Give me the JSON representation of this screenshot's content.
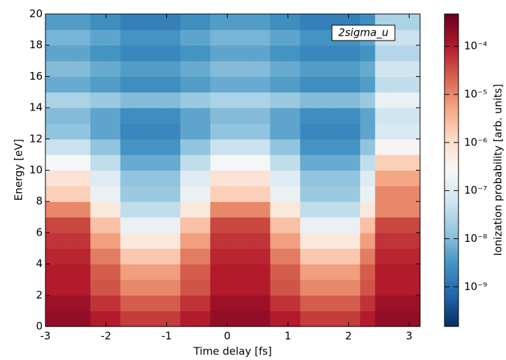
{
  "chart_data": {
    "type": "heatmap",
    "xlabel": "Time delay [fs]",
    "ylabel": "Energy [eV]",
    "annotation": "2sigma_u",
    "colorbar_label": "Ionization probability [arb. units]",
    "colormap": "RdBu_r",
    "color_scale": "log",
    "xlim": [
      -3,
      3.18
    ],
    "ylim": [
      0,
      20
    ],
    "xticks": [
      -3,
      -2,
      -1,
      0,
      1,
      2,
      3
    ],
    "yticks": [
      0,
      2,
      4,
      6,
      8,
      10,
      12,
      14,
      16,
      18,
      20
    ],
    "clim": [
      1.5e-10,
      0.00047
    ],
    "cticks": [
      {
        "value": 1e-09,
        "label": "10⁻⁹"
      },
      {
        "value": 1e-08,
        "label": "10⁻⁸"
      },
      {
        "value": 1e-07,
        "label": "10⁻⁷"
      },
      {
        "value": 1e-06,
        "label": "10⁻⁶"
      },
      {
        "value": 1e-05,
        "label": "10⁻⁵"
      },
      {
        "value": 0.0001,
        "label": "10⁻⁴"
      }
    ],
    "values": [
      [
        0.0002,
        0.0002,
        0.0002,
        0.0001,
        0.0001,
        5e-05,
        5e-05,
        5e-05,
        5e-05,
        0.0001,
        0.0001,
        0.0002,
        0.0002,
        0.0002,
        0.0002,
        0.0001,
        0.0001,
        5e-05,
        5e-05,
        5e-05,
        5e-05,
        0.0001,
        0.0002,
        0.0002,
        0.0002
      ],
      [
        0.00016,
        0.00016,
        0.00016,
        6e-05,
        6e-05,
        2.5e-05,
        2.5e-05,
        2.5e-05,
        2.5e-05,
        6e-05,
        6e-05,
        0.00016,
        0.00016,
        0.00016,
        0.00016,
        6e-05,
        6e-05,
        2.5e-05,
        2.5e-05,
        2.5e-05,
        2.5e-05,
        6e-05,
        0.00016,
        0.00016,
        0.00016
      ],
      [
        0.0001,
        0.0001,
        0.0001,
        3e-05,
        3e-05,
        1e-05,
        1e-05,
        1e-05,
        1e-05,
        3e-05,
        3e-05,
        0.0001,
        0.0001,
        0.0001,
        0.0001,
        3e-05,
        3e-05,
        1e-05,
        1e-05,
        1e-05,
        1e-05,
        3e-05,
        0.0001,
        0.0001,
        0.0001
      ],
      [
        0.0001,
        0.0001,
        0.0001,
        2.5e-05,
        2.5e-05,
        6e-06,
        6e-06,
        6e-06,
        6e-06,
        2.5e-05,
        2.5e-05,
        0.0001,
        0.0001,
        0.0001,
        0.0001,
        2.5e-05,
        2.5e-05,
        6e-06,
        6e-06,
        6e-06,
        6e-06,
        2.5e-05,
        0.0001,
        0.0001,
        0.0001
      ],
      [
        8e-05,
        8e-05,
        8e-05,
        1.3e-05,
        1.3e-05,
        2e-06,
        2e-06,
        2e-06,
        2e-06,
        1.3e-05,
        1.3e-05,
        8e-05,
        8e-05,
        8e-05,
        8e-05,
        1.3e-05,
        1.3e-05,
        2e-06,
        2e-06,
        2e-06,
        2e-06,
        1.3e-05,
        8e-05,
        8e-05,
        8e-05
      ],
      [
        6e-05,
        6e-05,
        6e-05,
        6e-06,
        6e-06,
        6e-07,
        6e-07,
        6e-07,
        6e-07,
        6e-06,
        6e-06,
        6e-05,
        6e-05,
        6e-05,
        6e-05,
        6e-06,
        6e-06,
        6e-07,
        6e-07,
        6e-07,
        6e-07,
        6e-06,
        6e-05,
        6e-05,
        6e-05
      ],
      [
        4e-05,
        4e-05,
        4e-05,
        2.5e-06,
        2.5e-06,
        1.6e-07,
        1.6e-07,
        1.6e-07,
        1.6e-07,
        2.5e-06,
        2.5e-06,
        4e-05,
        4e-05,
        4e-05,
        4e-05,
        2.5e-06,
        2.5e-06,
        1.6e-07,
        1.6e-07,
        1.6e-07,
        1.6e-07,
        2.5e-06,
        4e-05,
        4e-05,
        4e-05
      ],
      [
        1e-05,
        1e-05,
        1e-05,
        6e-07,
        6e-07,
        4e-08,
        4e-08,
        4e-08,
        4e-08,
        6e-07,
        6e-07,
        1e-05,
        1e-05,
        1e-05,
        1e-05,
        6e-07,
        6e-07,
        4e-08,
        4e-08,
        4e-08,
        4e-08,
        6e-07,
        1e-05,
        1e-05,
        1e-05
      ],
      [
        1.6e-06,
        1.6e-06,
        1.6e-06,
        1.6e-07,
        1.6e-07,
        1.6e-08,
        1.6e-08,
        1.6e-08,
        1.6e-08,
        1.6e-07,
        1.6e-07,
        1.6e-06,
        1.6e-06,
        1.6e-06,
        1.6e-06,
        1.6e-07,
        1.6e-07,
        1.6e-08,
        1.6e-08,
        1.6e-08,
        1.6e-08,
        1.6e-07,
        1e-05,
        1e-05,
        1e-05
      ],
      [
        8e-07,
        8e-07,
        8e-07,
        1e-07,
        1e-07,
        1.3e-08,
        1.3e-08,
        1.3e-08,
        1.3e-08,
        1e-07,
        1e-07,
        8e-07,
        8e-07,
        8e-07,
        8e-07,
        1e-07,
        1e-07,
        1.3e-08,
        1.3e-08,
        1.3e-08,
        1.3e-08,
        1e-07,
        5e-06,
        5e-06,
        5e-06
      ],
      [
        2.5e-07,
        2.5e-07,
        2.5e-07,
        4e-08,
        4e-08,
        6e-09,
        6e-09,
        6e-09,
        6e-09,
        4e-08,
        4e-08,
        2.5e-07,
        2.5e-07,
        2.5e-07,
        2.5e-07,
        4e-08,
        4e-08,
        6e-09,
        6e-09,
        6e-09,
        6e-09,
        4e-08,
        1.6e-06,
        1.6e-06,
        1.6e-06
      ],
      [
        5e-08,
        5e-08,
        5e-08,
        1.3e-08,
        1.3e-08,
        3e-09,
        3e-09,
        3e-09,
        3e-09,
        1.3e-08,
        1.3e-08,
        5e-08,
        5e-08,
        5e-08,
        5e-08,
        1.3e-08,
        1.3e-08,
        3e-09,
        3e-09,
        3e-09,
        3e-09,
        1.3e-08,
        3e-07,
        3e-07,
        3e-07
      ],
      [
        1.3e-08,
        1.3e-08,
        1.3e-08,
        5e-09,
        5e-09,
        2e-09,
        2e-09,
        2e-09,
        2e-09,
        5e-09,
        5e-09,
        1.3e-08,
        1.3e-08,
        1.3e-08,
        1.3e-08,
        5e-09,
        5e-09,
        2e-09,
        2e-09,
        2e-09,
        2e-09,
        5e-09,
        8e-08,
        8e-08,
        8e-08
      ],
      [
        1e-08,
        1e-08,
        1e-08,
        5e-09,
        5e-09,
        2.5e-09,
        2.5e-09,
        2.5e-09,
        2.5e-09,
        5e-09,
        5e-09,
        1e-08,
        1e-08,
        1e-08,
        1e-08,
        5e-09,
        5e-09,
        2.5e-09,
        2.5e-09,
        2.5e-09,
        2.5e-09,
        5e-09,
        6e-08,
        6e-08,
        6e-08
      ],
      [
        2.5e-08,
        2.5e-08,
        2.5e-08,
        1.6e-08,
        1.6e-08,
        1e-08,
        1e-08,
        1e-08,
        1e-08,
        1.6e-08,
        1.6e-08,
        2.5e-08,
        2.5e-08,
        2.5e-08,
        2.5e-08,
        1.6e-08,
        1.6e-08,
        1e-08,
        1e-08,
        1e-08,
        1e-08,
        1.6e-08,
        1.6e-07,
        1.6e-07,
        1.6e-07
      ],
      [
        6e-09,
        6e-09,
        6e-09,
        4e-09,
        4e-09,
        2.5e-09,
        2.5e-09,
        2.5e-09,
        2.5e-09,
        4e-09,
        4e-09,
        6e-09,
        6e-09,
        6e-09,
        6e-09,
        4e-09,
        4e-09,
        2.5e-09,
        2.5e-09,
        2.5e-09,
        2.5e-09,
        4e-09,
        4e-08,
        4e-08,
        4e-08
      ],
      [
        1e-08,
        1e-08,
        1e-08,
        6e-09,
        6e-09,
        4e-09,
        4e-09,
        4e-09,
        4e-09,
        6e-09,
        6e-09,
        1e-08,
        1e-08,
        1e-08,
        1e-08,
        6e-09,
        6e-09,
        4e-09,
        4e-09,
        4e-09,
        4e-09,
        6e-09,
        6e-08,
        6e-08,
        6e-08
      ],
      [
        5e-09,
        5e-09,
        5e-09,
        3e-09,
        3e-09,
        2e-09,
        2e-09,
        2e-09,
        2e-09,
        3e-09,
        3e-09,
        5e-09,
        5e-09,
        5e-09,
        5e-09,
        3e-09,
        3e-09,
        2e-09,
        2e-09,
        2e-09,
        2e-09,
        3e-09,
        3e-08,
        3e-08,
        3e-08
      ],
      [
        8e-09,
        8e-09,
        8e-09,
        5e-09,
        5e-09,
        3e-09,
        3e-09,
        3e-09,
        3e-09,
        5e-09,
        5e-09,
        8e-09,
        8e-09,
        8e-09,
        8e-09,
        5e-09,
        5e-09,
        3e-09,
        3e-09,
        3e-09,
        3e-09,
        5e-09,
        5e-08,
        5e-08,
        5e-08
      ],
      [
        4e-09,
        4e-09,
        4e-09,
        2.5e-09,
        2.5e-09,
        1.6e-09,
        1.6e-09,
        1.6e-09,
        1.6e-09,
        2.5e-09,
        2.5e-09,
        4e-09,
        4e-09,
        4e-09,
        4e-09,
        2.5e-09,
        2.5e-09,
        1.6e-09,
        1.6e-09,
        1.6e-09,
        1.6e-09,
        2.5e-09,
        2.5e-08,
        2.5e-08,
        2.5e-08
      ]
    ]
  }
}
